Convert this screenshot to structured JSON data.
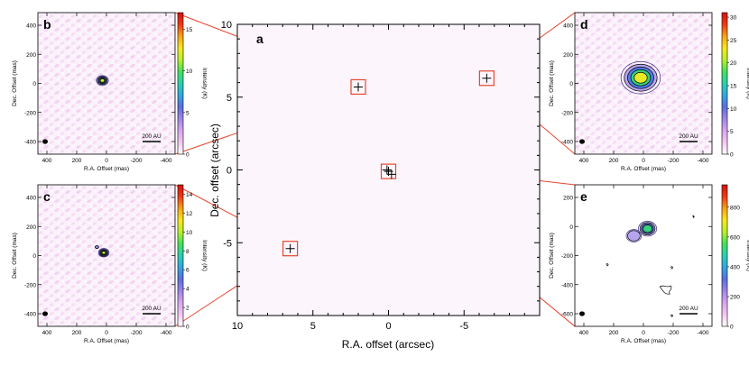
{
  "chart_data": [
    {
      "type": "scatter",
      "panel": "a",
      "xlabel": "R.A. offset (arcsec)",
      "ylabel": "Dec. offset (arcsec)",
      "xlim": [
        10,
        -10
      ],
      "ylim": [
        -10,
        10
      ],
      "xticks": [
        "10",
        "5",
        "0",
        "-5"
      ],
      "yticks": [
        "10",
        "5",
        "0",
        "-5"
      ],
      "sources": [
        {
          "x": 2.0,
          "y": 5.7,
          "zoom": "b"
        },
        {
          "x": 6.5,
          "y": -5.4,
          "zoom": "c"
        },
        {
          "x": -6.5,
          "y": 6.3,
          "zoom": "d"
        },
        {
          "x": 0.0,
          "y": -0.1,
          "zoom": "e"
        },
        {
          "x": 0.1,
          "y": 0.0,
          "zoom": "e"
        },
        {
          "x": -0.2,
          "y": -0.3,
          "zoom": "e"
        }
      ]
    },
    {
      "type": "heatmap",
      "panel": "b",
      "xlabel": "R.A. Offset (mas)",
      "ylabel": "Dec. Offset (mas)",
      "colorbar_label": "Intensity (K)",
      "xticks": [
        "400",
        "200",
        "0",
        "-200",
        "-400"
      ],
      "yticks": [
        "400",
        "200",
        "0",
        "-200",
        "-400"
      ],
      "colorbar_ticks": [
        "15",
        "10",
        "5",
        "0"
      ],
      "colorbar_max": 17,
      "scale_bar": "200 AU"
    },
    {
      "type": "heatmap",
      "panel": "c",
      "xlabel": "R.A. Offset (mas)",
      "ylabel": "Dec. Offset (mas)",
      "colorbar_label": "Intensity (K)",
      "xticks": [
        "400",
        "200",
        "0",
        "-200",
        "-400"
      ],
      "yticks": [
        "400",
        "200",
        "0",
        "-200",
        "-400"
      ],
      "colorbar_ticks": [
        "14",
        "12",
        "10",
        "8",
        "6",
        "4",
        "2",
        "0"
      ],
      "colorbar_max": 15,
      "scale_bar": "200 AU"
    },
    {
      "type": "heatmap",
      "panel": "d",
      "xlabel": "R.A. Offset (mas)",
      "ylabel": "Dec. Offset (mas)",
      "colorbar_label": "Intensity (K)",
      "xticks": [
        "400",
        "200",
        "0",
        "-200",
        "-400"
      ],
      "yticks": [
        "400",
        "200",
        "0",
        "-200",
        "-400"
      ],
      "colorbar_ticks": [
        "30",
        "25",
        "20",
        "15",
        "10",
        "5",
        "0"
      ],
      "colorbar_max": 31,
      "scale_bar": "200 AU"
    },
    {
      "type": "heatmap",
      "panel": "e",
      "xlabel": "R.A. Offset (mas)",
      "ylabel": "Dec. Offset (mas)",
      "colorbar_label": "Intensity (K)",
      "xticks": [
        "400",
        "200",
        "0",
        "-200",
        "-400"
      ],
      "yticks": [
        "200",
        "0",
        "-200",
        "-400",
        "-600"
      ],
      "colorbar_ticks": [
        "800",
        "600",
        "400",
        "200",
        "0"
      ],
      "colorbar_max": 950,
      "scale_bar": "200 AU"
    }
  ],
  "colors": {
    "zoom_line": "#e8452e",
    "background_tint": "#fbf3fb",
    "pink_noise": "#f1cdee",
    "colormap": [
      "#ffffff",
      "#f5c6f2",
      "#d8a6f0",
      "#9f86e6",
      "#5b6fe0",
      "#33a6df",
      "#2ccfb0",
      "#45e05a",
      "#b8ef2f",
      "#f7e81f",
      "#f7a21a",
      "#ee3a16",
      "#d11212"
    ]
  }
}
